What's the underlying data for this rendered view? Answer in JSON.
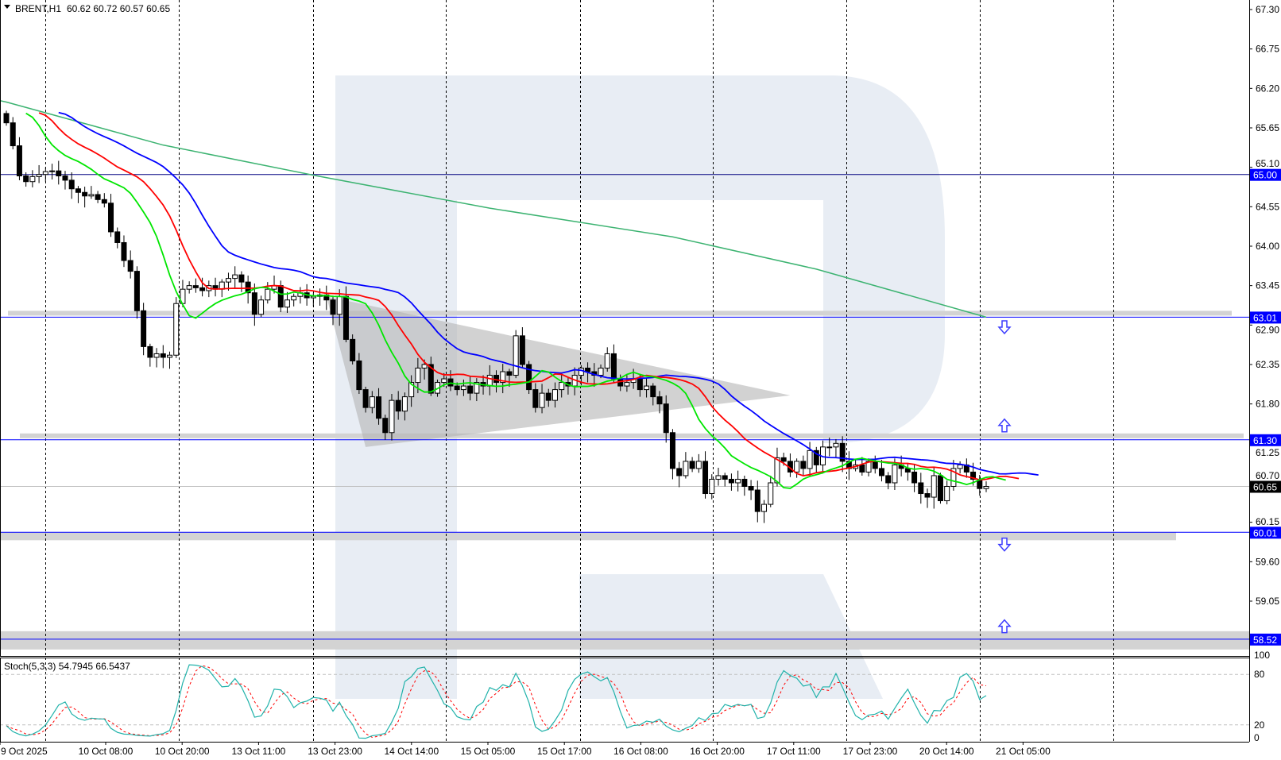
{
  "header": {
    "menu_icon": "triangle-down-icon",
    "symbol": "BRENT,H1",
    "ohlc": "60.62 60.72 60.57 60.65"
  },
  "stoch_header": {
    "label": "Stoch(5,3,3) 54.7945 66.5437"
  },
  "colors": {
    "background": "#ffffff",
    "bull_candle": "#ffffff",
    "bear_candle": "#000000",
    "jaw": "#0000ff",
    "teeth": "#ff0000",
    "lips": "#00e600",
    "long_ma": "#3cb371",
    "level_line": "#0000ff",
    "zone": "#d3d3d3",
    "watermark": "#e8edf4",
    "stoch_main": "#20b2aa",
    "stoch_signal": "#ff0000",
    "price_tag": "#0000ff",
    "current_price_tag": "#000000"
  },
  "chart_data": {
    "type": "candlestick",
    "symbol": "BRENT",
    "timeframe": "H1",
    "ylim": [
      58.3,
      67.43
    ],
    "price_ticks": [
      "67.30",
      "66.75",
      "66.20",
      "65.65",
      "65.10",
      "64.55",
      "64.00",
      "63.45",
      "62.90",
      "62.35",
      "61.80",
      "61.25",
      "60.70",
      "60.15",
      "59.60",
      "59.05"
    ],
    "time_labels": [
      "9 Oct 2025",
      "10 Oct 08:00",
      "10 Oct 20:00",
      "13 Oct 11:00",
      "13 Oct 23:00",
      "14 Oct 14:00",
      "15 Oct 05:00",
      "15 Oct 17:00",
      "16 Oct 08:00",
      "16 Oct 20:00",
      "17 Oct 11:00",
      "17 Oct 23:00",
      "20 Oct 14:00",
      "21 Oct 05:00"
    ],
    "closes": [
      65.72,
      65.4,
      64.98,
      64.9,
      64.97,
      65.0,
      65.04,
      65.05,
      64.98,
      64.92,
      64.8,
      64.75,
      64.7,
      64.72,
      64.65,
      64.6,
      64.2,
      64.05,
      63.8,
      63.65,
      63.1,
      62.6,
      62.45,
      62.5,
      62.45,
      62.48,
      63.2,
      63.4,
      63.45,
      63.42,
      63.38,
      63.45,
      63.4,
      63.5,
      63.55,
      63.6,
      63.5,
      63.35,
      63.05,
      63.25,
      63.4,
      63.45,
      63.15,
      63.25,
      63.3,
      63.35,
      63.28,
      63.3,
      63.32,
      63.25,
      63.05,
      63.3,
      62.7,
      62.4,
      62.0,
      61.75,
      61.9,
      61.6,
      61.4,
      61.85,
      61.7,
      61.9,
      62.1,
      62.3,
      62.35,
      61.95,
      62.1,
      62.15,
      62.05,
      62.0,
      62.05,
      61.95,
      62.1,
      62.05,
      62.2,
      62.1,
      62.25,
      62.2,
      62.75,
      62.35,
      62.0,
      61.75,
      61.95,
      61.85,
      62.0,
      62.1,
      62.05,
      62.2,
      62.3,
      62.25,
      62.2,
      62.3,
      62.5,
      62.15,
      62.05,
      62.1,
      62.15,
      62.0,
      62.05,
      61.9,
      61.8,
      61.4,
      60.9,
      60.8,
      61.0,
      60.9,
      61.0,
      60.55,
      60.75,
      60.8,
      60.75,
      60.7,
      60.75,
      60.65,
      60.6,
      60.3,
      60.4,
      60.7,
      61.05,
      61.0,
      60.85,
      61.0,
      60.9,
      61.15,
      60.95,
      61.2,
      61.2,
      61.25,
      61.0,
      60.9,
      60.95,
      60.85,
      61.0,
      60.9,
      60.8,
      60.7,
      60.95,
      60.9,
      60.85,
      60.7,
      60.55,
      60.5,
      60.8,
      60.45,
      60.65,
      60.9,
      60.95,
      60.85,
      60.75,
      60.62,
      60.65
    ],
    "last_bar": {
      "open": 60.62,
      "high": 60.72,
      "low": 60.57,
      "close": 60.65
    },
    "indicators": {
      "alligator": {
        "jaw_period": 13,
        "jaw_shift": 8,
        "teeth_period": 8,
        "teeth_shift": 5,
        "lips_period": 5,
        "lips_shift": 3
      },
      "long_ma_knots": [
        {
          "bar": 0,
          "value": 66.01
        },
        {
          "bar": 24,
          "value": 65.41
        },
        {
          "bar": 47,
          "value": 64.99
        },
        {
          "bar": 74,
          "value": 64.53
        },
        {
          "bar": 102,
          "value": 64.13
        },
        {
          "bar": 124,
          "value": 63.68
        },
        {
          "bar": 150,
          "value": 63.01
        }
      ],
      "stochastic": {
        "k": 5,
        "d": 3,
        "slowing": 3,
        "levels": [
          20,
          80
        ],
        "scale_labels": [
          "100",
          "80",
          "20",
          "0"
        ],
        "last_main": 54.7945,
        "last_signal": 66.5437
      }
    },
    "levels": [
      {
        "price": 65.0,
        "label": "65.00",
        "style": "line"
      },
      {
        "price": 63.01,
        "label": "63.01",
        "style": "zone-above"
      },
      {
        "price": 61.3,
        "label": "61.30",
        "style": "zone-above"
      },
      {
        "price": 60.01,
        "label": "60.01",
        "style": "zone-below"
      },
      {
        "price": 58.52,
        "label": "58.52",
        "style": "zone-around"
      }
    ],
    "current_price": {
      "price": 60.65,
      "label": "60.65"
    },
    "arrows": [
      {
        "direction": "down",
        "price": 62.87,
        "icon": "arrow-down-outline-icon"
      },
      {
        "direction": "up",
        "price": 61.5,
        "icon": "arrow-up-outline-icon"
      },
      {
        "direction": "down",
        "price": 59.84,
        "icon": "arrow-down-outline-icon"
      },
      {
        "direction": "up",
        "price": 58.7,
        "icon": "arrow-up-outline-icon"
      }
    ],
    "triangle_pattern": [
      {
        "bar": 49,
        "price": 63.3
      },
      {
        "bar": 120,
        "price": 61.92
      },
      {
        "bar": 55,
        "price": 61.2
      }
    ],
    "grid": "vertical-dashed-day-separators"
  }
}
